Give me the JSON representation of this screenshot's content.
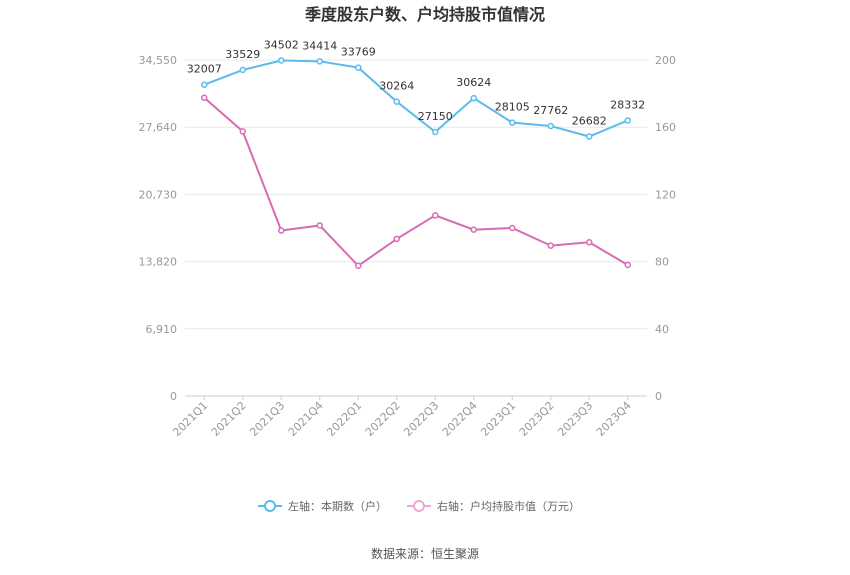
{
  "chart_data": {
    "type": "line",
    "title": "季度股东户数、户均持股市值情况",
    "categories": [
      "2021Q1",
      "2021Q2",
      "2021Q3",
      "2021Q4",
      "2022Q1",
      "2022Q2",
      "2022Q3",
      "2022Q4",
      "2023Q1",
      "2023Q2",
      "2023Q3",
      "2023Q4"
    ],
    "left_axis": {
      "min": 0,
      "max": 34550,
      "ticks": [
        "0",
        "6,910",
        "13,820",
        "20,730",
        "27,640",
        "34,550"
      ],
      "tick_values": [
        0,
        6910,
        13820,
        20730,
        27640,
        34550
      ]
    },
    "right_axis": {
      "min": 0,
      "max": 200,
      "ticks": [
        "0",
        "40",
        "80",
        "120",
        "160",
        "200"
      ],
      "tick_values": [
        0,
        40,
        80,
        120,
        160,
        200
      ]
    },
    "series": [
      {
        "name": "左轴：本期数（户）",
        "axis": "left",
        "color": "#5bbcec",
        "values": [
          32007,
          33529,
          34502,
          34414,
          33769,
          30264,
          27150,
          30624,
          28105,
          27762,
          26682,
          28332
        ],
        "labels": [
          "32007",
          "33529",
          "34502",
          "34414",
          "33769",
          "30264",
          "27150",
          "30624",
          "28105",
          "27762",
          "26682",
          "28332"
        ]
      },
      {
        "name": "右轴：户均持股市值（万元）",
        "axis": "right",
        "color": "#d96bb3",
        "values": [
          177.5,
          157.5,
          98.5,
          101.5,
          77.5,
          93.5,
          107.5,
          99,
          100,
          89.5,
          91.5,
          78
        ]
      }
    ],
    "grid": true,
    "legend_position": "bottom"
  },
  "footer": {
    "source": "数据来源：恒生聚源"
  }
}
